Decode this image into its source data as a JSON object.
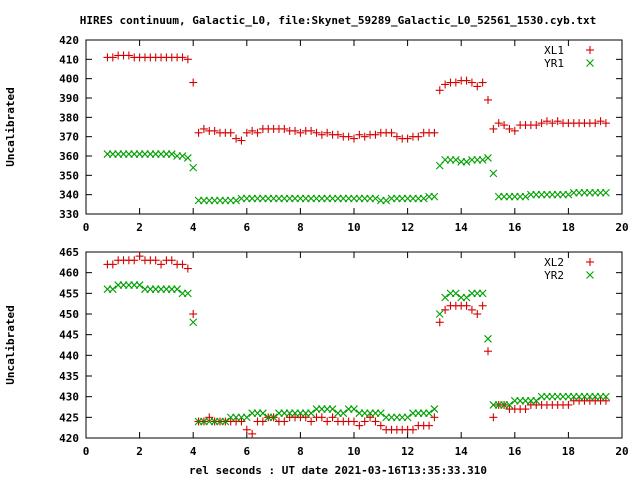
{
  "title": "HIRES continuum, Galactic_L0, file:Skynet_59289_Galactic_L0_52561_1530.cyb.txt",
  "xlabel": "rel seconds : UT date 2021-03-16T13:35:33.310",
  "chart_data": [
    {
      "type": "scatter",
      "ylabel": "Uncalibrated",
      "xlim": [
        0,
        20
      ],
      "ylim": [
        330,
        420
      ],
      "xticks": [
        0,
        2,
        4,
        6,
        8,
        10,
        12,
        14,
        16,
        18,
        20
      ],
      "yticks": [
        330,
        340,
        350,
        360,
        370,
        380,
        390,
        400,
        410,
        420
      ],
      "legend_position": "top-right",
      "series": [
        {
          "name": "XL1",
          "marker": "plus",
          "color": "#d40000",
          "x": [
            0.8,
            1.0,
            1.2,
            1.4,
            1.6,
            1.8,
            2.0,
            2.2,
            2.4,
            2.6,
            2.8,
            3.0,
            3.2,
            3.4,
            3.6,
            3.8,
            4.0,
            4.2,
            4.4,
            4.6,
            4.8,
            5.0,
            5.2,
            5.4,
            5.6,
            5.8,
            6.0,
            6.2,
            6.4,
            6.6,
            6.8,
            7.0,
            7.2,
            7.4,
            7.6,
            7.8,
            8.0,
            8.2,
            8.4,
            8.6,
            8.8,
            9.0,
            9.2,
            9.4,
            9.6,
            9.8,
            10.0,
            10.2,
            10.4,
            10.6,
            10.8,
            11.0,
            11.2,
            11.4,
            11.6,
            11.8,
            12.0,
            12.2,
            12.4,
            12.6,
            12.8,
            13.0,
            13.2,
            13.4,
            13.6,
            13.8,
            14.0,
            14.2,
            14.4,
            14.6,
            14.8,
            15.0,
            15.2,
            15.4,
            15.6,
            15.8,
            16.0,
            16.2,
            16.4,
            16.6,
            16.8,
            17.0,
            17.2,
            17.4,
            17.6,
            17.8,
            18.0,
            18.2,
            18.4,
            18.6,
            18.8,
            19.0,
            19.2,
            19.4
          ],
          "y": [
            411,
            411,
            412,
            412,
            412,
            411,
            411,
            411,
            411,
            411,
            411,
            411,
            411,
            411,
            411,
            410,
            398,
            372,
            374,
            373,
            373,
            372,
            372,
            372,
            369,
            368,
            372,
            373,
            372,
            374,
            374,
            374,
            374,
            374,
            373,
            373,
            372,
            373,
            373,
            372,
            371,
            372,
            371,
            371,
            370,
            370,
            369,
            371,
            370,
            371,
            371,
            372,
            372,
            372,
            370,
            369,
            369,
            370,
            370,
            372,
            372,
            372,
            394,
            397,
            398,
            398,
            399,
            399,
            398,
            396,
            398,
            389,
            374,
            377,
            376,
            374,
            373,
            376,
            376,
            376,
            376,
            377,
            378,
            377,
            378,
            377,
            377,
            377,
            377,
            377,
            377,
            377,
            378,
            377
          ],
          "note": "values approximate, read from gridlines"
        },
        {
          "name": "YR1",
          "marker": "cross",
          "color": "#00a000",
          "x": [
            0.8,
            1.0,
            1.2,
            1.4,
            1.6,
            1.8,
            2.0,
            2.2,
            2.4,
            2.6,
            2.8,
            3.0,
            3.2,
            3.4,
            3.6,
            3.8,
            4.0,
            4.2,
            4.4,
            4.6,
            4.8,
            5.0,
            5.2,
            5.4,
            5.6,
            5.8,
            6.0,
            6.2,
            6.4,
            6.6,
            6.8,
            7.0,
            7.2,
            7.4,
            7.6,
            7.8,
            8.0,
            8.2,
            8.4,
            8.6,
            8.8,
            9.0,
            9.2,
            9.4,
            9.6,
            9.8,
            10.0,
            10.2,
            10.4,
            10.6,
            10.8,
            11.0,
            11.2,
            11.4,
            11.6,
            11.8,
            12.0,
            12.2,
            12.4,
            12.6,
            12.8,
            13.0,
            13.2,
            13.4,
            13.6,
            13.8,
            14.0,
            14.2,
            14.4,
            14.6,
            14.8,
            15.0,
            15.2,
            15.4,
            15.6,
            15.8,
            16.0,
            16.2,
            16.4,
            16.6,
            16.8,
            17.0,
            17.2,
            17.4,
            17.6,
            17.8,
            18.0,
            18.2,
            18.4,
            18.6,
            18.8,
            19.0,
            19.2,
            19.4
          ],
          "y": [
            361,
            361,
            361,
            361,
            361,
            361,
            361,
            361,
            361,
            361,
            361,
            361,
            361,
            360,
            360,
            359,
            354,
            337,
            337,
            337,
            337,
            337,
            337,
            337,
            337,
            338,
            338,
            338,
            338,
            338,
            338,
            338,
            338,
            338,
            338,
            338,
            338,
            338,
            338,
            338,
            338,
            338,
            338,
            338,
            338,
            338,
            338,
            338,
            338,
            338,
            338,
            337,
            337,
            338,
            338,
            338,
            338,
            338,
            338,
            338,
            339,
            339,
            355,
            358,
            358,
            358,
            357,
            357,
            358,
            358,
            358,
            359,
            351,
            339,
            339,
            339,
            339,
            339,
            339,
            340,
            340,
            340,
            340,
            340,
            340,
            340,
            340,
            341,
            341,
            341,
            341,
            341,
            341,
            341
          ],
          "note": "values approximate"
        }
      ]
    },
    {
      "type": "scatter",
      "ylabel": "Uncalibrated",
      "xlim": [
        0,
        20
      ],
      "ylim": [
        420,
        465
      ],
      "xticks": [
        0,
        2,
        4,
        6,
        8,
        10,
        12,
        14,
        16,
        18,
        20
      ],
      "yticks": [
        420,
        425,
        430,
        435,
        440,
        445,
        450,
        455,
        460,
        465
      ],
      "legend_position": "top-right",
      "series": [
        {
          "name": "XL2",
          "marker": "plus",
          "color": "#d40000",
          "x": [
            0.8,
            1.0,
            1.2,
            1.4,
            1.6,
            1.8,
            2.0,
            2.2,
            2.4,
            2.6,
            2.8,
            3.0,
            3.2,
            3.4,
            3.6,
            3.8,
            4.0,
            4.2,
            4.4,
            4.6,
            4.8,
            5.0,
            5.2,
            5.4,
            5.6,
            5.8,
            6.0,
            6.2,
            6.4,
            6.6,
            6.8,
            7.0,
            7.2,
            7.4,
            7.6,
            7.8,
            8.0,
            8.2,
            8.4,
            8.6,
            8.8,
            9.0,
            9.2,
            9.4,
            9.6,
            9.8,
            10.0,
            10.2,
            10.4,
            10.6,
            10.8,
            11.0,
            11.2,
            11.4,
            11.6,
            11.8,
            12.0,
            12.2,
            12.4,
            12.6,
            12.8,
            13.0,
            13.2,
            13.4,
            13.6,
            13.8,
            14.0,
            14.2,
            14.4,
            14.6,
            14.8,
            15.0,
            15.2,
            15.4,
            15.6,
            15.8,
            16.0,
            16.2,
            16.4,
            16.6,
            16.8,
            17.0,
            17.2,
            17.4,
            17.6,
            17.8,
            18.0,
            18.2,
            18.4,
            18.6,
            18.8,
            19.0,
            19.2,
            19.4
          ],
          "y": [
            462,
            462,
            463,
            463,
            463,
            463,
            464,
            463,
            463,
            463,
            462,
            463,
            463,
            462,
            462,
            461,
            450,
            424,
            424,
            425,
            424,
            424,
            424,
            424,
            424,
            424,
            422,
            421,
            424,
            424,
            425,
            425,
            424,
            424,
            425,
            425,
            425,
            425,
            424,
            425,
            425,
            424,
            425,
            424,
            424,
            424,
            424,
            423,
            424,
            425,
            424,
            423,
            422,
            422,
            422,
            422,
            422,
            422,
            423,
            423,
            423,
            425,
            448,
            451,
            452,
            452,
            452,
            452,
            451,
            450,
            452,
            441,
            425,
            428,
            428,
            427,
            427,
            427,
            427,
            428,
            428,
            428,
            428,
            428,
            428,
            428,
            428,
            429,
            429,
            429,
            429,
            429,
            429,
            429
          ],
          "note": "values approximate"
        },
        {
          "name": "YR2",
          "marker": "cross",
          "color": "#00a000",
          "x": [
            0.8,
            1.0,
            1.2,
            1.4,
            1.6,
            1.8,
            2.0,
            2.2,
            2.4,
            2.6,
            2.8,
            3.0,
            3.2,
            3.4,
            3.6,
            3.8,
            4.0,
            4.2,
            4.4,
            4.6,
            4.8,
            5.0,
            5.2,
            5.4,
            5.6,
            5.8,
            6.0,
            6.2,
            6.4,
            6.6,
            6.8,
            7.0,
            7.2,
            7.4,
            7.6,
            7.8,
            8.0,
            8.2,
            8.4,
            8.6,
            8.8,
            9.0,
            9.2,
            9.4,
            9.6,
            9.8,
            10.0,
            10.2,
            10.4,
            10.6,
            10.8,
            11.0,
            11.2,
            11.4,
            11.6,
            11.8,
            12.0,
            12.2,
            12.4,
            12.6,
            12.8,
            13.0,
            13.2,
            13.4,
            13.6,
            13.8,
            14.0,
            14.2,
            14.4,
            14.6,
            14.8,
            15.0,
            15.2,
            15.4,
            15.6,
            15.8,
            16.0,
            16.2,
            16.4,
            16.6,
            16.8,
            17.0,
            17.2,
            17.4,
            17.6,
            17.8,
            18.0,
            18.2,
            18.4,
            18.6,
            18.8,
            19.0,
            19.2,
            19.4
          ],
          "y": [
            456,
            456,
            457,
            457,
            457,
            457,
            457,
            456,
            456,
            456,
            456,
            456,
            456,
            456,
            455,
            455,
            448,
            424,
            424,
            424,
            424,
            424,
            424,
            425,
            425,
            425,
            425,
            426,
            426,
            426,
            425,
            425,
            426,
            426,
            426,
            426,
            426,
            426,
            426,
            427,
            427,
            427,
            427,
            426,
            426,
            427,
            427,
            426,
            426,
            426,
            426,
            426,
            425,
            425,
            425,
            425,
            425,
            426,
            426,
            426,
            426,
            427,
            450,
            454,
            455,
            455,
            454,
            454,
            455,
            455,
            455,
            444,
            428,
            428,
            428,
            428,
            429,
            429,
            429,
            429,
            429,
            430,
            430,
            430,
            430,
            430,
            430,
            430,
            430,
            430,
            430,
            430,
            430,
            430
          ],
          "note": "values approximate"
        }
      ]
    }
  ]
}
